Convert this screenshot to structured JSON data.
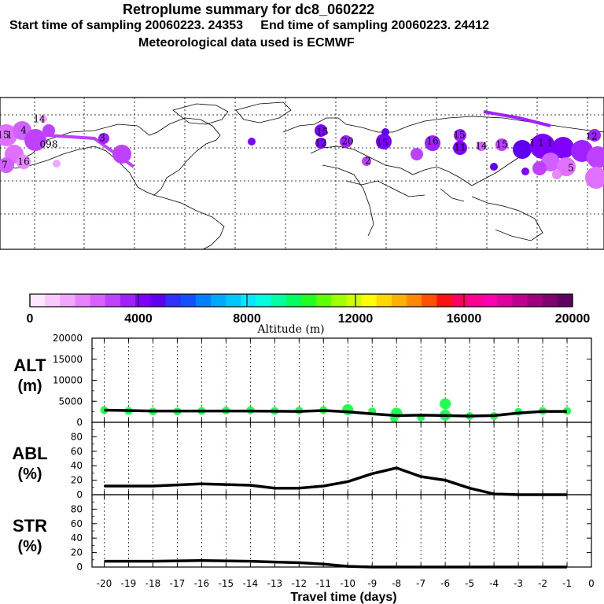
{
  "titles": {
    "line1": "Retroplume summary for dc8_060222",
    "line2": "Start time of sampling 20060223. 24353     End time of sampling 20060223. 24412",
    "line3": "Meteorological data used is ECMWF"
  },
  "colorbar": {
    "label": "Altitude (m)",
    "ticks": [
      "0",
      "4000",
      "8000",
      "12000",
      "16000",
      "20000"
    ],
    "colors": [
      "#ffe8ff",
      "#f8c8ff",
      "#f0a8ff",
      "#e880ff",
      "#d860ff",
      "#c040ff",
      "#a020ff",
      "#8000ff",
      "#6000f0",
      "#3030ff",
      "#1050ff",
      "#0080ff",
      "#00a8ff",
      "#00c8ff",
      "#00e8ff",
      "#00ffe0",
      "#00ffa0",
      "#00ff60",
      "#20ff20",
      "#60ff00",
      "#a0ff00",
      "#d0ff00",
      "#ffff00",
      "#ffd800",
      "#ffb000",
      "#ff8800",
      "#ff5000",
      "#ff1010",
      "#ff0060",
      "#ff0090",
      "#ff00b0",
      "#e000a0",
      "#c00090",
      "#a00080",
      "#800070",
      "#600060"
    ]
  },
  "map_labels": [
    {
      "text": "14",
      "color": "#d060ff"
    },
    {
      "text": "4",
      "color": "#d060ff"
    },
    {
      "text": "1",
      "color": "#c040ff"
    },
    {
      "text": "15",
      "color": "#d060ff"
    },
    {
      "text": "098",
      "color": "#c040ff"
    },
    {
      "text": "7",
      "color": "#d060ff"
    },
    {
      "text": "16",
      "color": "#d060ff"
    },
    {
      "text": "3",
      "color": "#c040ff"
    },
    {
      "text": "20",
      "color": "#a020ff"
    },
    {
      "text": "15",
      "color": "#8000ff"
    },
    {
      "text": "12",
      "color": "#a020ff"
    },
    {
      "text": "15",
      "color": "#8000ff"
    },
    {
      "text": "16",
      "color": "#a020ff"
    },
    {
      "text": "11",
      "color": "#8000ff"
    },
    {
      "text": "14",
      "color": "#d060ff"
    },
    {
      "text": "15",
      "color": "#c040ff"
    },
    {
      "text": "15",
      "color": "#a020ff"
    },
    {
      "text": "2",
      "color": "#a020ff"
    },
    {
      "text": "1 1 1",
      "color": "#6000f0"
    },
    {
      "text": "5",
      "color": "#c040ff"
    },
    {
      "text": "12",
      "color": "#c040ff"
    }
  ],
  "chart_data": [
    {
      "type": "scatter+line",
      "panel_label": "ALT",
      "panel_unit": "(m)",
      "ylim": [
        0,
        20000
      ],
      "yticks": [
        "20000",
        "15000",
        "10000",
        "5000",
        "0"
      ],
      "ytick_values": [
        20000,
        15000,
        10000,
        5000,
        0
      ],
      "scatter_color": "#20ff50",
      "line": {
        "x": [
          -20,
          -18,
          -16,
          -14,
          -12,
          -11,
          -10,
          -9,
          -8,
          -7,
          -6,
          -5,
          -4,
          -3,
          -2,
          -1
        ],
        "y": [
          2900,
          2700,
          2700,
          2700,
          2600,
          2800,
          2500,
          2000,
          1600,
          1700,
          1600,
          1500,
          1600,
          2200,
          2600,
          2600
        ]
      },
      "points": {
        "x": [
          -20,
          -19,
          -18,
          -17,
          -16,
          -15,
          -14,
          -13,
          -12,
          -11,
          -10,
          -9,
          -8.1,
          -8,
          -7,
          -6,
          -6,
          -5,
          -4,
          -3,
          -2,
          -1
        ],
        "y": [
          2900,
          2700,
          2600,
          2600,
          2700,
          2800,
          2900,
          2700,
          2800,
          2900,
          3000,
          2600,
          900,
          2200,
          1200,
          1700,
          4400,
          1500,
          1500,
          2500,
          2700,
          2700
        ]
      }
    },
    {
      "type": "line",
      "panel_label": "ABL",
      "panel_unit": "(%)",
      "ylim": [
        0,
        100
      ],
      "yticks": [
        "80",
        "60",
        "40",
        "20",
        "0"
      ],
      "ytick_values": [
        80,
        60,
        40,
        20,
        0
      ],
      "line": {
        "x": [
          -20,
          -18,
          -16,
          -15,
          -14,
          -13,
          -12,
          -11,
          -10,
          -9,
          -8,
          -7,
          -6,
          -5,
          -4,
          -3,
          -2,
          -1
        ],
        "y": [
          12,
          12,
          15,
          14,
          13,
          9,
          9,
          12,
          18,
          29,
          37,
          25,
          20,
          9,
          1,
          0,
          0,
          0
        ]
      }
    },
    {
      "type": "line",
      "panel_label": "STR",
      "panel_unit": "(%)",
      "ylim": [
        0,
        100
      ],
      "yticks": [
        "80",
        "60",
        "40",
        "20",
        "0"
      ],
      "ytick_values": [
        80,
        60,
        40,
        20,
        0
      ],
      "line": {
        "x": [
          -20,
          -18,
          -16,
          -14,
          -13,
          -12,
          -11,
          -10,
          -9,
          -8,
          -7,
          -6,
          -5,
          -4,
          -3,
          -2,
          -1
        ],
        "y": [
          8,
          8,
          9,
          8,
          7,
          6,
          4,
          1,
          0,
          0,
          0,
          0,
          0,
          0,
          0,
          0,
          0
        ]
      }
    }
  ],
  "xaxis": {
    "label": "Travel time (days)",
    "xlim": [
      -20.5,
      0
    ],
    "ticks": [
      "-20",
      "-19",
      "-18",
      "-17",
      "-16",
      "-15",
      "-14",
      "-13",
      "-12",
      "-11",
      "-10",
      "-9",
      "-8",
      "-7",
      "-6",
      "-5",
      "-4",
      "-3",
      "-2",
      "-1",
      "0"
    ],
    "tick_values": [
      -20,
      -19,
      -18,
      -17,
      -16,
      -15,
      -14,
      -13,
      -12,
      -11,
      -10,
      -9,
      -8,
      -7,
      -6,
      -5,
      -4,
      -3,
      -2,
      -1,
      0
    ]
  }
}
